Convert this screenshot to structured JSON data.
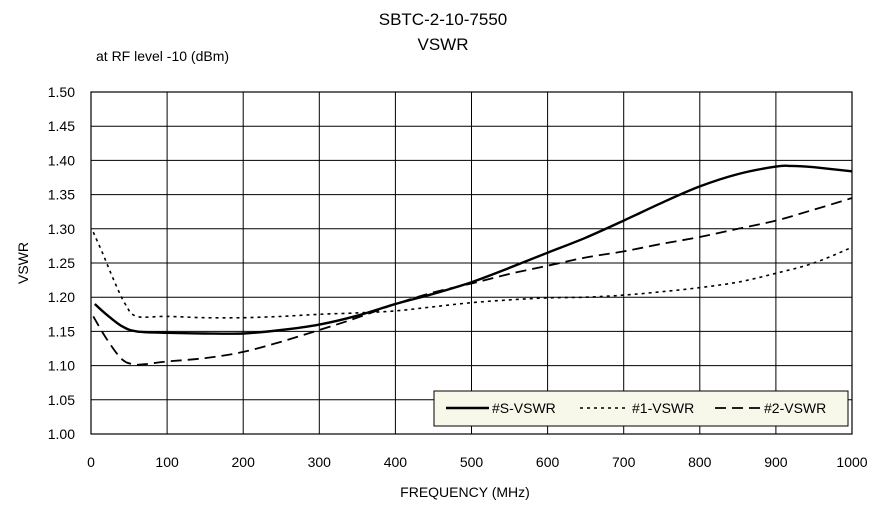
{
  "chart_data": {
    "type": "line",
    "title": "SBTC-2-10-7550",
    "subtitle": "VSWR",
    "note": "at RF level -10 (dBm)",
    "xlabel": "FREQUENCY (MHz)",
    "ylabel": "VSWR",
    "xlim": [
      0,
      1000
    ],
    "ylim": [
      1.0,
      1.5
    ],
    "xticks": [
      0,
      100,
      200,
      300,
      400,
      500,
      600,
      700,
      800,
      900,
      1000
    ],
    "yticks": [
      "1.00",
      "1.05",
      "1.10",
      "1.15",
      "1.20",
      "1.25",
      "1.30",
      "1.35",
      "1.40",
      "1.45",
      "1.50"
    ],
    "grid": true,
    "legend_position": "bottom-right",
    "series": [
      {
        "name": "#S-VSWR",
        "style": "solid",
        "x": [
          5,
          20,
          40,
          60,
          100,
          150,
          200,
          250,
          300,
          350,
          400,
          450,
          500,
          550,
          600,
          650,
          700,
          750,
          800,
          850,
          900,
          920,
          950,
          1000
        ],
        "y": [
          1.19,
          1.175,
          1.158,
          1.15,
          1.148,
          1.147,
          1.147,
          1.152,
          1.16,
          1.173,
          1.19,
          1.205,
          1.222,
          1.243,
          1.265,
          1.287,
          1.312,
          1.338,
          1.362,
          1.38,
          1.391,
          1.392,
          1.39,
          1.384
        ]
      },
      {
        "name": "#1-VSWR",
        "style": "dotted",
        "x": [
          3,
          15,
          30,
          45,
          60,
          100,
          150,
          200,
          250,
          300,
          350,
          400,
          450,
          500,
          550,
          600,
          650,
          700,
          750,
          800,
          850,
          900,
          950,
          1000
        ],
        "y": [
          1.295,
          1.265,
          1.225,
          1.19,
          1.172,
          1.172,
          1.17,
          1.17,
          1.172,
          1.175,
          1.177,
          1.18,
          1.186,
          1.192,
          1.196,
          1.199,
          1.2,
          1.203,
          1.208,
          1.214,
          1.222,
          1.235,
          1.25,
          1.273
        ]
      },
      {
        "name": "#2-VSWR",
        "style": "dashed",
        "x": [
          3,
          20,
          40,
          55,
          70,
          100,
          150,
          200,
          250,
          300,
          350,
          400,
          450,
          500,
          550,
          600,
          650,
          700,
          750,
          800,
          850,
          900,
          950,
          1000
        ],
        "y": [
          1.172,
          1.14,
          1.11,
          1.102,
          1.102,
          1.106,
          1.111,
          1.12,
          1.135,
          1.152,
          1.17,
          1.19,
          1.207,
          1.22,
          1.234,
          1.246,
          1.258,
          1.267,
          1.278,
          1.288,
          1.3,
          1.312,
          1.328,
          1.345
        ]
      }
    ]
  }
}
